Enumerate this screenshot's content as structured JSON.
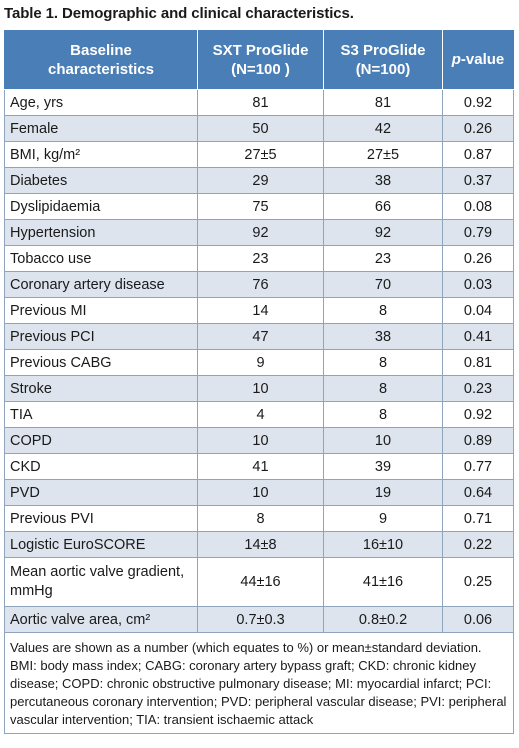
{
  "caption": "Table 1. Demographic and clinical characteristics.",
  "header": {
    "col1_line1": "Baseline",
    "col1_line2": "characteristics",
    "col2_line1": "SXT ProGlide",
    "col2_line2": "(N=100 )",
    "col3_line1": "S3 ProGlide",
    "col3_line2": "(N=100)",
    "col4_italic": "p",
    "col4_rest": "-value"
  },
  "rows": [
    {
      "label": "Age, yrs",
      "sxt": "81",
      "s3": "81",
      "p": "0.92"
    },
    {
      "label": "Female",
      "sxt": "50",
      "s3": "42",
      "p": "0.26"
    },
    {
      "label": "BMI, kg/m²",
      "sxt": "27±5",
      "s3": "27±5",
      "p": "0.87"
    },
    {
      "label": "Diabetes",
      "sxt": "29",
      "s3": "38",
      "p": "0.37"
    },
    {
      "label": "Dyslipidaemia",
      "sxt": "75",
      "s3": "66",
      "p": "0.08"
    },
    {
      "label": "Hypertension",
      "sxt": "92",
      "s3": "92",
      "p": "0.79"
    },
    {
      "label": "Tobacco use",
      "sxt": "23",
      "s3": "23",
      "p": "0.26"
    },
    {
      "label": "Coronary artery disease",
      "sxt": "76",
      "s3": "70",
      "p": "0.03"
    },
    {
      "label": "Previous MI",
      "sxt": "14",
      "s3": "8",
      "p": "0.04"
    },
    {
      "label": "Previous PCI",
      "sxt": "47",
      "s3": "38",
      "p": "0.41"
    },
    {
      "label": "Previous CABG",
      "sxt": "9",
      "s3": "8",
      "p": "0.81"
    },
    {
      "label": "Stroke",
      "sxt": "10",
      "s3": "8",
      "p": "0.23"
    },
    {
      "label": "TIA",
      "sxt": "4",
      "s3": "8",
      "p": "0.92"
    },
    {
      "label": "COPD",
      "sxt": "10",
      "s3": "10",
      "p": "0.89"
    },
    {
      "label": "CKD",
      "sxt": "41",
      "s3": "39",
      "p": "0.77"
    },
    {
      "label": "PVD",
      "sxt": "10",
      "s3": "19",
      "p": "0.64"
    },
    {
      "label": "Previous PVI",
      "sxt": "8",
      "s3": "9",
      "p": "0.71"
    },
    {
      "label": "Logistic EuroSCORE",
      "sxt": "14±8",
      "s3": "16±10",
      "p": "0.22"
    },
    {
      "label": "Mean aortic valve gradient, mmHg",
      "sxt": "44±16",
      "s3": "41±16",
      "p": "0.25"
    },
    {
      "label": "Aortic valve area, cm²",
      "sxt": "0.7±0.3",
      "s3": "0.8±0.2",
      "p": "0.06"
    }
  ],
  "footnote": "Values are shown as a number (which equates to %) or mean±standard deviation. BMI: body mass index; CABG: coronary artery bypass graft; CKD: chronic kidney disease; COPD: chronic obstructive pulmonary disease; MI: myocardial infarct; PCI: percutaneous coronary intervention; PVD: peripheral vascular disease; PVI: peripheral vascular intervention; TIA: transient ischaemic attack"
}
